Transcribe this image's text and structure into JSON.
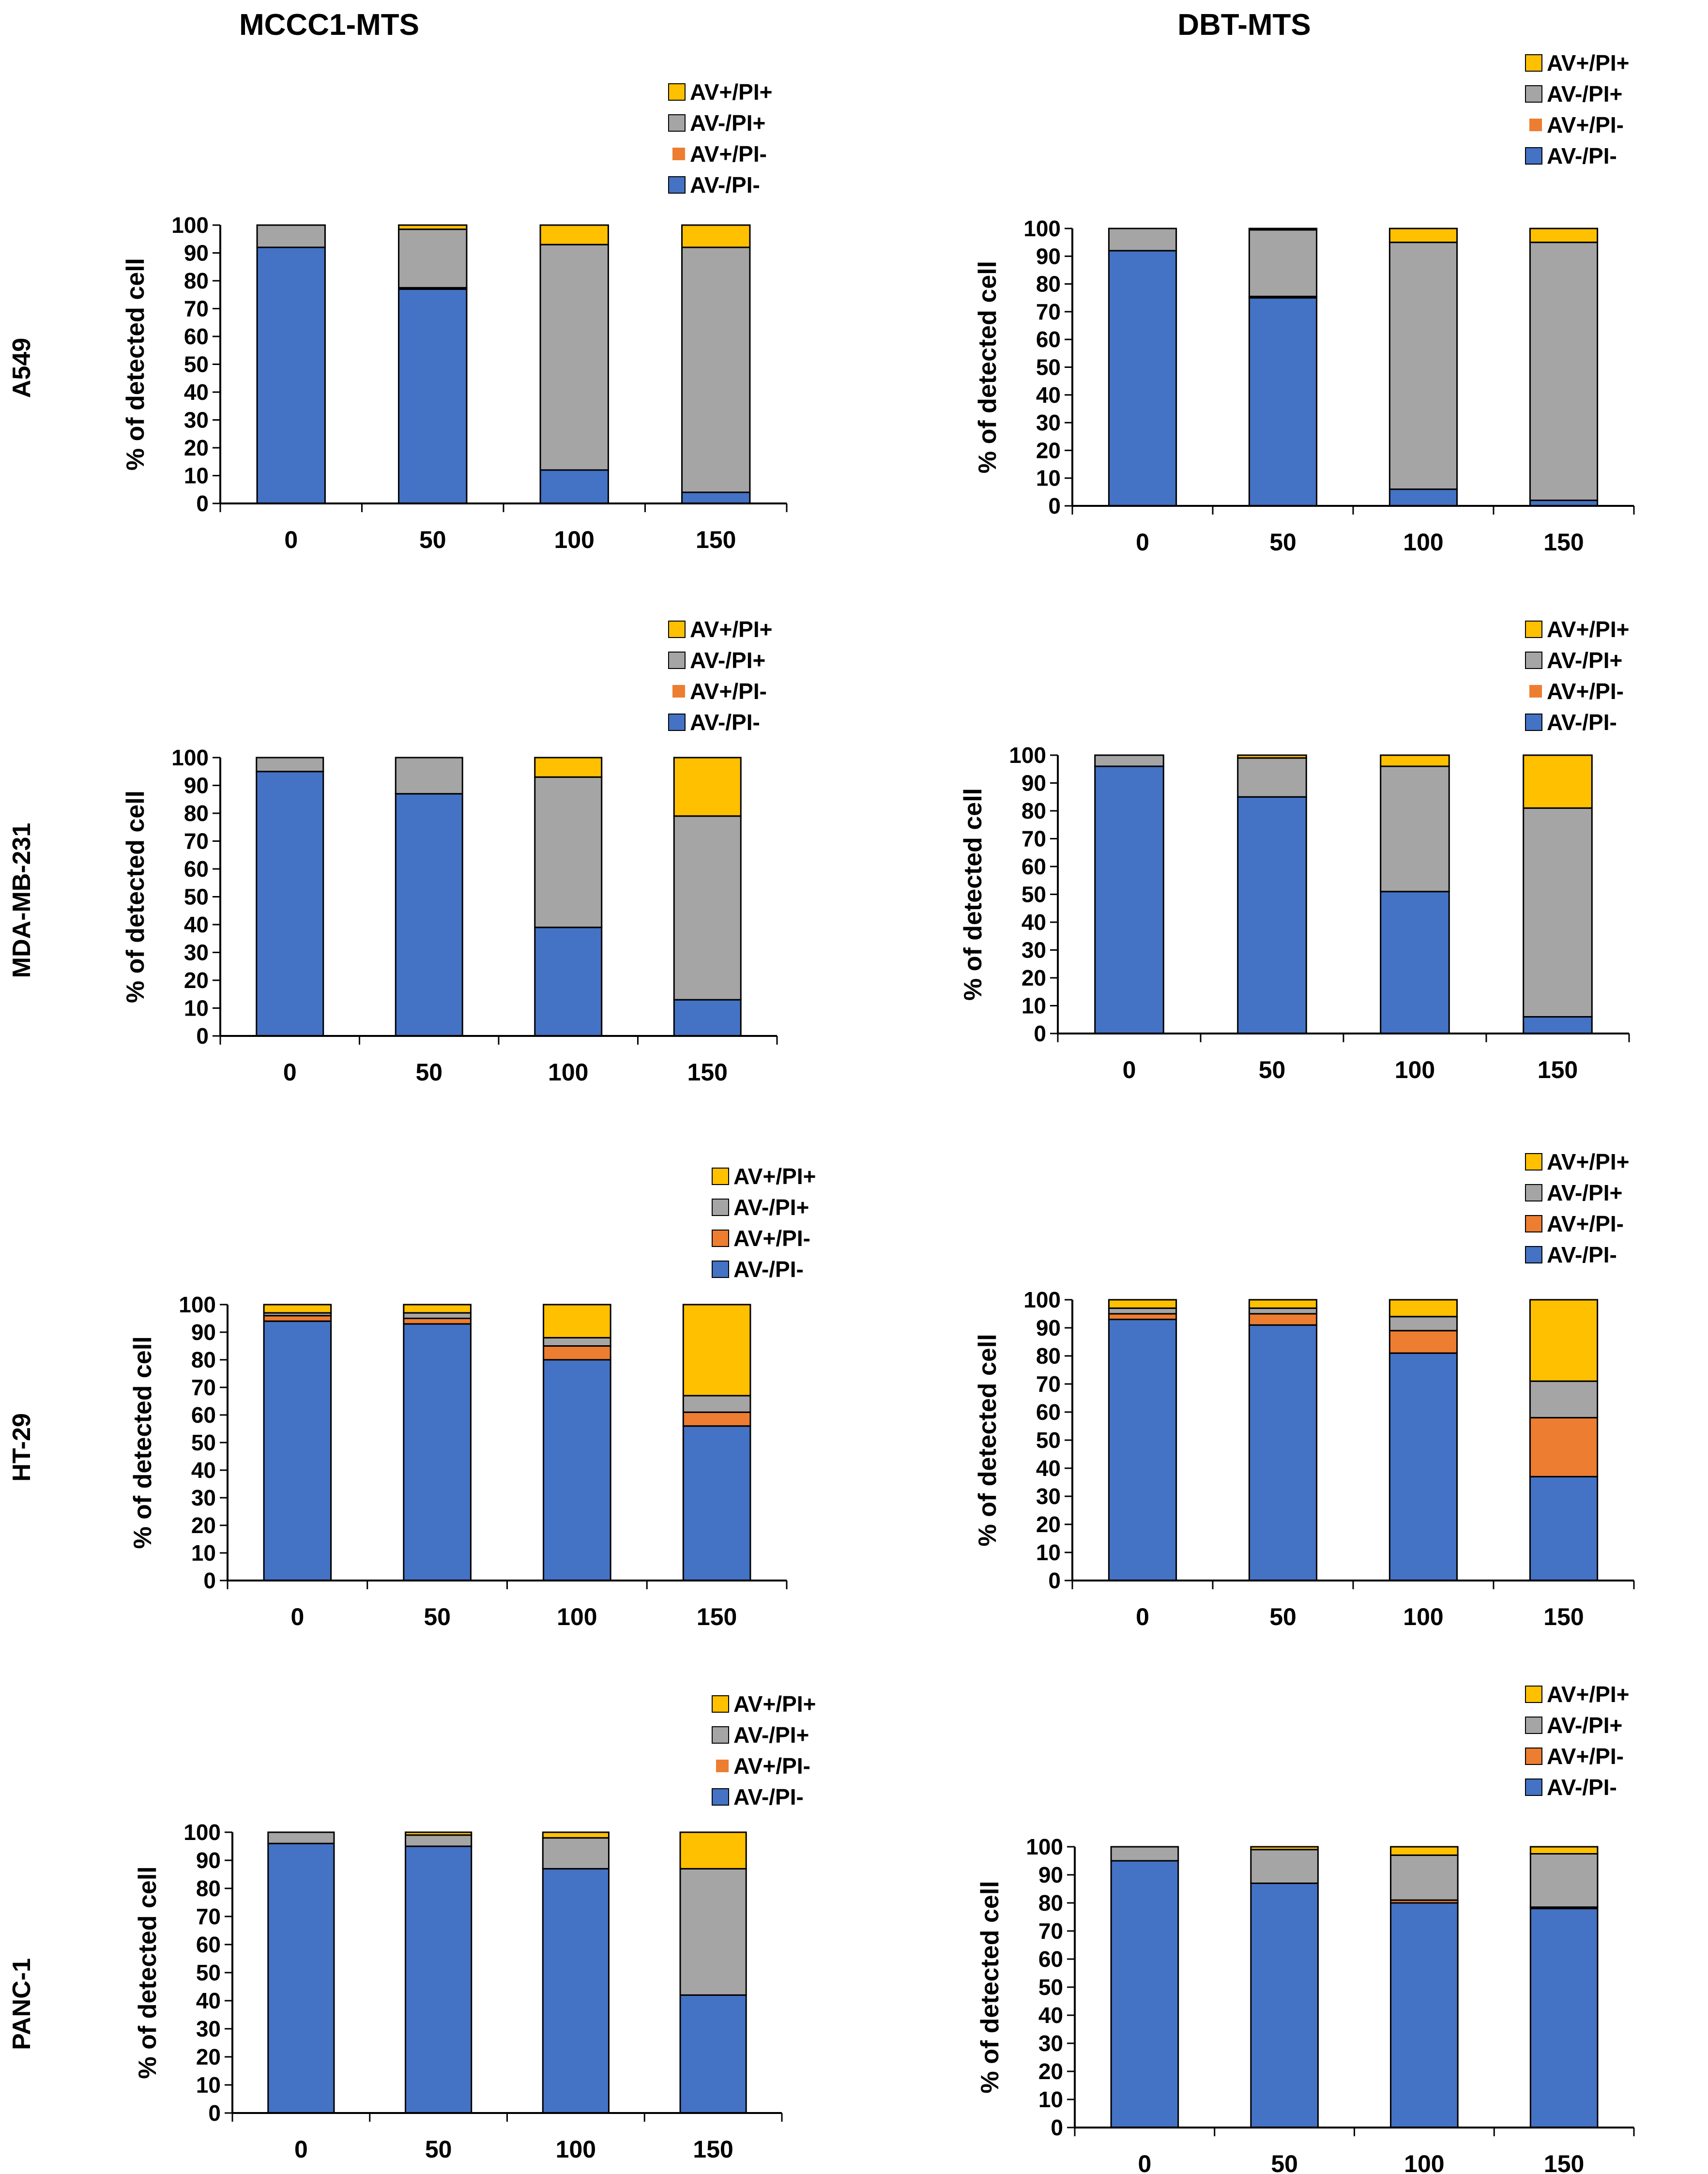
{
  "column_titles": [
    "MCCC1-MTS",
    "DBT-MTS"
  ],
  "row_labels": [
    "A549",
    "MDA-MB-231",
    "HT-29",
    "PANC-1"
  ],
  "colors": {
    "AV-/PI-": "#4472C4",
    "AV+/PI-": "#ED7D31",
    "AV-/PI+": "#A5A5A5",
    "AV+/PI+": "#FFC000"
  },
  "chart_data": [
    {
      "type": "bar",
      "stacked": true,
      "cell_line": "A549",
      "treatment": "MCCC1-MTS",
      "categories": [
        "0",
        "50",
        "100",
        "150"
      ],
      "series": [
        {
          "name": "AV-/PI-",
          "values": [
            92,
            77,
            12,
            4
          ]
        },
        {
          "name": "AV+/PI-",
          "values": [
            0,
            0.5,
            0,
            0
          ]
        },
        {
          "name": "AV-/PI+",
          "values": [
            8,
            21,
            81,
            88
          ]
        },
        {
          "name": "AV+/PI+",
          "values": [
            0,
            1.5,
            7,
            8
          ]
        }
      ],
      "legend": [
        "AV+/PI+",
        "AV-/PI+",
        "AV+/PI-",
        "AV-/PI-"
      ],
      "ylabel": "%  of detected cell",
      "ylim": [
        0,
        100
      ],
      "yticks": [
        "0",
        "10",
        "20",
        "30",
        "40",
        "50",
        "60",
        "70",
        "80",
        "90",
        "100"
      ]
    },
    {
      "type": "bar",
      "stacked": true,
      "cell_line": "A549",
      "treatment": "DBT-MTS",
      "categories": [
        "0",
        "50",
        "100",
        "150"
      ],
      "series": [
        {
          "name": "AV-/PI-",
          "values": [
            92,
            75,
            6,
            2
          ]
        },
        {
          "name": "AV+/PI-",
          "values": [
            0,
            0.5,
            0,
            0
          ]
        },
        {
          "name": "AV-/PI+",
          "values": [
            8,
            24,
            89,
            93
          ]
        },
        {
          "name": "AV+/PI+",
          "values": [
            0,
            0.5,
            5,
            5
          ]
        }
      ],
      "legend": [
        "AV+/PI+",
        "AV-/PI+",
        "AV+/PI-",
        "AV-/PI-"
      ],
      "ylabel": "%  of detected cell",
      "ylim": [
        0,
        100
      ],
      "yticks": [
        "0",
        "10",
        "20",
        "30",
        "40",
        "50",
        "60",
        "70",
        "80",
        "90",
        "100"
      ]
    },
    {
      "type": "bar",
      "stacked": true,
      "cell_line": "MDA-MB-231",
      "treatment": "MCCC1-MTS",
      "categories": [
        "0",
        "50",
        "100",
        "150"
      ],
      "series": [
        {
          "name": "AV-/PI-",
          "values": [
            95,
            87,
            39,
            13
          ]
        },
        {
          "name": "AV+/PI-",
          "values": [
            0,
            0,
            0,
            0
          ]
        },
        {
          "name": "AV-/PI+",
          "values": [
            5,
            13,
            54,
            66
          ]
        },
        {
          "name": "AV+/PI+",
          "values": [
            0,
            0,
            7,
            21
          ]
        }
      ],
      "legend": [
        "AV+/PI+",
        "AV-/PI+",
        "AV+/PI-",
        "AV-/PI-"
      ],
      "ylabel": "%  of detected cell",
      "ylim": [
        0,
        100
      ],
      "yticks": [
        "0",
        "10",
        "20",
        "30",
        "40",
        "50",
        "60",
        "70",
        "80",
        "90",
        "100"
      ]
    },
    {
      "type": "bar",
      "stacked": true,
      "cell_line": "MDA-MB-231",
      "treatment": "DBT-MTS",
      "categories": [
        "0",
        "50",
        "100",
        "150"
      ],
      "series": [
        {
          "name": "AV-/PI-",
          "values": [
            96,
            85,
            51,
            6
          ]
        },
        {
          "name": "AV+/PI-",
          "values": [
            0,
            0,
            0,
            0
          ]
        },
        {
          "name": "AV-/PI+",
          "values": [
            4,
            14,
            45,
            75
          ]
        },
        {
          "name": "AV+/PI+",
          "values": [
            0,
            1,
            4,
            19
          ]
        }
      ],
      "legend": [
        "AV+/PI+",
        "AV-/PI+",
        "AV+/PI-",
        "AV-/PI-"
      ],
      "ylabel": "%  of detected cell",
      "ylim": [
        0,
        100
      ],
      "yticks": [
        "0",
        "10",
        "20",
        "30",
        "40",
        "50",
        "60",
        "70",
        "80",
        "90",
        "100"
      ]
    },
    {
      "type": "bar",
      "stacked": true,
      "cell_line": "HT-29",
      "treatment": "MCCC1-MTS",
      "categories": [
        "0",
        "50",
        "100",
        "150"
      ],
      "series": [
        {
          "name": "AV-/PI-",
          "values": [
            94,
            93,
            80,
            56
          ]
        },
        {
          "name": "AV+/PI-",
          "values": [
            2,
            2,
            5,
            5
          ]
        },
        {
          "name": "AV-/PI+",
          "values": [
            1,
            2,
            3,
            6
          ]
        },
        {
          "name": "AV+/PI+",
          "values": [
            3,
            3,
            12,
            33
          ]
        }
      ],
      "legend": [
        "AV+/PI+",
        "AV-/PI+",
        "AV+/PI-",
        "AV-/PI-"
      ],
      "ylabel": "%  of detected cell",
      "ylim": [
        0,
        100
      ],
      "yticks": [
        "0",
        "10",
        "20",
        "30",
        "40",
        "50",
        "60",
        "70",
        "80",
        "90",
        "100"
      ]
    },
    {
      "type": "bar",
      "stacked": true,
      "cell_line": "HT-29",
      "treatment": "DBT-MTS",
      "categories": [
        "0",
        "50",
        "100",
        "150"
      ],
      "series": [
        {
          "name": "AV-/PI-",
          "values": [
            93,
            91,
            81,
            37
          ]
        },
        {
          "name": "AV+/PI-",
          "values": [
            2,
            4,
            8,
            21
          ]
        },
        {
          "name": "AV-/PI+",
          "values": [
            2,
            2,
            5,
            13
          ]
        },
        {
          "name": "AV+/PI+",
          "values": [
            3,
            3,
            6,
            29
          ]
        }
      ],
      "legend": [
        "AV+/PI+",
        "AV-/PI+",
        "AV+/PI-",
        "AV-/PI-"
      ],
      "ylabel": "%  of detected cell",
      "ylim": [
        0,
        100
      ],
      "yticks": [
        "0",
        "10",
        "20",
        "30",
        "40",
        "50",
        "60",
        "70",
        "80",
        "90",
        "100"
      ]
    },
    {
      "type": "bar",
      "stacked": true,
      "cell_line": "PANC-1",
      "treatment": "MCCC1-MTS",
      "categories": [
        "0",
        "50",
        "100",
        "150"
      ],
      "series": [
        {
          "name": "AV-/PI-",
          "values": [
            96,
            95,
            87,
            42
          ]
        },
        {
          "name": "AV+/PI-",
          "values": [
            0,
            0,
            0,
            0
          ]
        },
        {
          "name": "AV-/PI+",
          "values": [
            4,
            4,
            11,
            45
          ]
        },
        {
          "name": "AV+/PI+",
          "values": [
            0,
            1,
            2,
            13
          ]
        }
      ],
      "legend": [
        "AV+/PI+",
        "AV-/PI+",
        "AV+/PI-",
        "AV-/PI-"
      ],
      "ylabel": "%  of detected cell",
      "ylim": [
        0,
        100
      ],
      "yticks": [
        "0",
        "10",
        "20",
        "30",
        "40",
        "50",
        "60",
        "70",
        "80",
        "90",
        "100"
      ]
    },
    {
      "type": "bar",
      "stacked": true,
      "cell_line": "PANC-1",
      "treatment": "DBT-MTS",
      "categories": [
        "0",
        "50",
        "100",
        "150"
      ],
      "series": [
        {
          "name": "AV-/PI-",
          "values": [
            95,
            87,
            80,
            78
          ]
        },
        {
          "name": "AV+/PI-",
          "values": [
            0,
            0,
            1,
            0.5
          ]
        },
        {
          "name": "AV-/PI+",
          "values": [
            5,
            12,
            16,
            19
          ]
        },
        {
          "name": "AV+/PI+",
          "values": [
            0,
            1,
            3,
            2.5
          ]
        }
      ],
      "legend": [
        "AV+/PI+",
        "AV-/PI+",
        "AV+/PI-",
        "AV-/PI-"
      ],
      "ylabel": "%  of detected cell",
      "ylim": [
        0,
        100
      ],
      "yticks": [
        "0",
        "10",
        "20",
        "30",
        "40",
        "50",
        "60",
        "70",
        "80",
        "90",
        "100"
      ]
    }
  ]
}
